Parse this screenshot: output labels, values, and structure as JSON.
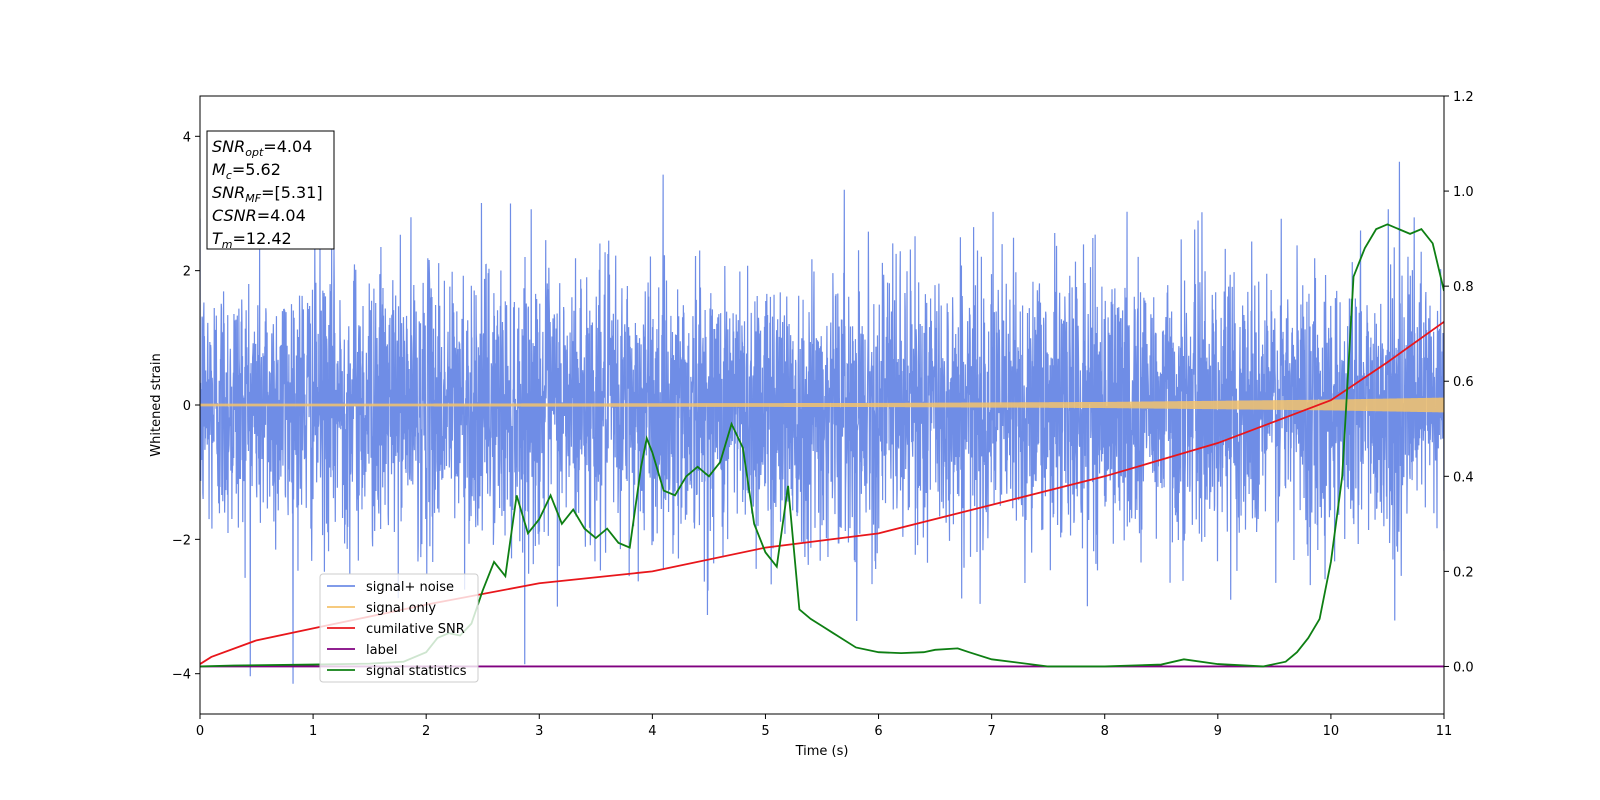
{
  "chart_data": {
    "type": "line",
    "xlabel": "Time (s)",
    "ylabel": "Whitened strain",
    "xlim": [
      0,
      11
    ],
    "ylim": [
      -4.6,
      4.6
    ],
    "y2lim": [
      -0.1,
      1.2
    ],
    "x_ticks": [
      "0",
      "1",
      "2",
      "3",
      "4",
      "5",
      "6",
      "7",
      "8",
      "9",
      "10",
      "11"
    ],
    "y_ticks": [
      "4",
      "2",
      "0",
      "−2",
      "−4"
    ],
    "y2_ticks": [
      "1.2",
      "1.0",
      "0.8",
      "0.6",
      "0.4",
      "0.2",
      "0.0"
    ],
    "info_box": [
      {
        "base": "SNR",
        "sub": "opt",
        "value": "=4.04"
      },
      {
        "base": "M",
        "sub": "c",
        "value": "=5.62"
      },
      {
        "base": "SNR",
        "sub": "MF",
        "value": "=[5.31]"
      },
      {
        "base": "CSNR",
        "sub": "",
        "value": "=4.04"
      },
      {
        "base": "T",
        "sub": "m",
        "value": "=12.42"
      }
    ],
    "legend_position": "lower-left",
    "series": [
      {
        "name": "signal+ noise",
        "axis": "left",
        "color": "#6f8de6",
        "description_values": {
          "noise_std": 1.0,
          "typical_range": [
            -3.7,
            4.2
          ]
        }
      },
      {
        "name": "signal only",
        "axis": "left",
        "color": "#f5c36b",
        "amplitude_x": [
          0,
          2,
          4,
          6,
          8,
          10,
          11
        ],
        "amplitude_y": [
          0.02,
          0.02,
          0.025,
          0.03,
          0.045,
          0.08,
          0.11
        ]
      },
      {
        "name": "cumilative SNR",
        "axis": "right",
        "color": "#e8161b",
        "x": [
          0,
          0.1,
          0.5,
          1,
          2,
          3,
          4,
          5,
          6,
          7,
          8,
          9,
          10,
          10.5,
          11
        ],
        "y": [
          0.005,
          0.02,
          0.055,
          0.08,
          0.13,
          0.175,
          0.2,
          0.25,
          0.28,
          0.34,
          0.4,
          0.47,
          0.56,
          0.64,
          0.725
        ]
      },
      {
        "name": "label",
        "axis": "right",
        "color": "#800080",
        "x": [
          0,
          11
        ],
        "y": [
          0.0,
          0.0
        ]
      },
      {
        "name": "signal statistics",
        "axis": "right",
        "color": "#0e7f13",
        "x": [
          0,
          0.3,
          1,
          1.5,
          1.8,
          2.0,
          2.1,
          2.2,
          2.3,
          2.4,
          2.5,
          2.6,
          2.7,
          2.8,
          2.9,
          3.0,
          3.1,
          3.2,
          3.3,
          3.4,
          3.5,
          3.6,
          3.7,
          3.8,
          3.9,
          3.95,
          4.0,
          4.1,
          4.2,
          4.3,
          4.4,
          4.5,
          4.6,
          4.7,
          4.8,
          4.9,
          5.0,
          5.1,
          5.2,
          5.3,
          5.4,
          5.5,
          5.6,
          5.8,
          6.0,
          6.2,
          6.4,
          6.5,
          6.7,
          6.8,
          7.0,
          7.5,
          8.0,
          8.5,
          8.7,
          9.0,
          9.4,
          9.6,
          9.7,
          9.8,
          9.9,
          10.0,
          10.1,
          10.2,
          10.3,
          10.4,
          10.5,
          10.6,
          10.7,
          10.8,
          10.9,
          11.0
        ],
        "y": [
          0.0,
          0.002,
          0.004,
          0.006,
          0.01,
          0.03,
          0.06,
          0.07,
          0.065,
          0.09,
          0.16,
          0.22,
          0.19,
          0.36,
          0.28,
          0.31,
          0.36,
          0.3,
          0.33,
          0.29,
          0.27,
          0.29,
          0.26,
          0.25,
          0.42,
          0.48,
          0.45,
          0.37,
          0.36,
          0.4,
          0.42,
          0.4,
          0.43,
          0.51,
          0.46,
          0.3,
          0.24,
          0.21,
          0.38,
          0.12,
          0.1,
          0.085,
          0.07,
          0.04,
          0.03,
          0.028,
          0.03,
          0.035,
          0.038,
          0.03,
          0.015,
          0.0,
          0.0,
          0.004,
          0.015,
          0.005,
          0.0,
          0.01,
          0.03,
          0.06,
          0.1,
          0.22,
          0.4,
          0.82,
          0.88,
          0.92,
          0.93,
          0.92,
          0.91,
          0.92,
          0.89,
          0.79
        ]
      }
    ]
  }
}
